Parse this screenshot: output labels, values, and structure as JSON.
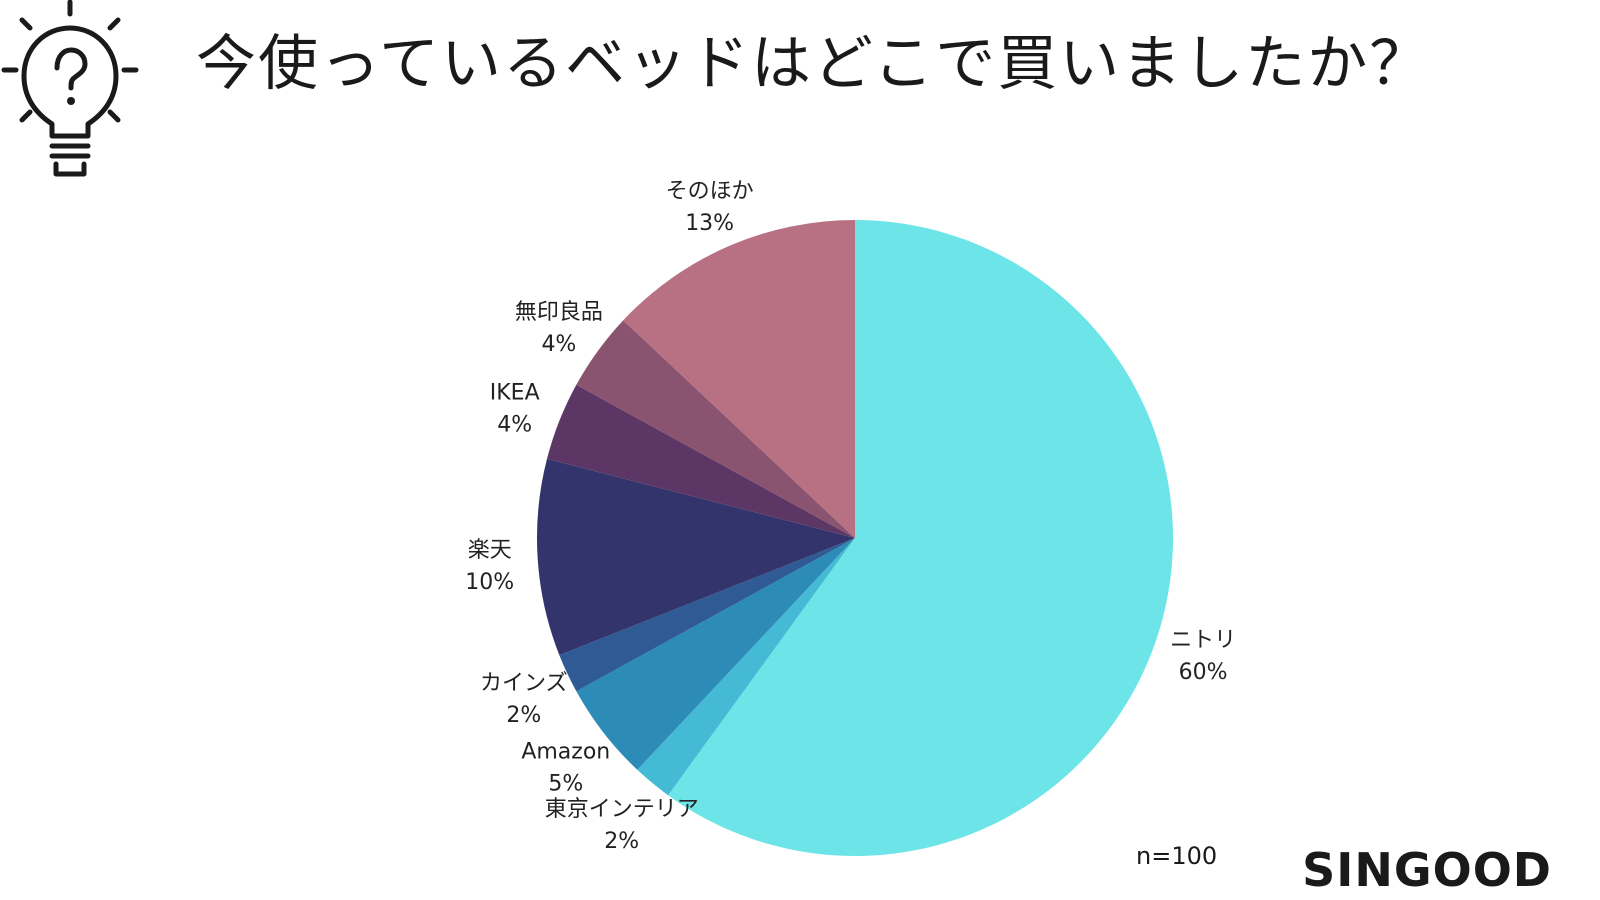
{
  "title": "今使っているベッドはどこで買いましたか？",
  "icon": "lightbulb-question-icon",
  "chart_data": {
    "type": "pie",
    "title": "今使っているベッドはどこで買いましたか？",
    "start": "12 o'clock, clockwise",
    "slices": [
      {
        "label": "ニトリ",
        "value": 60,
        "value_label": "60%",
        "color": "#6de5e8"
      },
      {
        "label": "東京インテリア",
        "value": 2,
        "value_label": "2%",
        "color": "#45bad5"
      },
      {
        "label": "Amazon",
        "value": 5,
        "value_label": "5%",
        "color": "#2d8bb8"
      },
      {
        "label": "カインズ",
        "value": 2,
        "value_label": "2%",
        "color": "#2f5a94"
      },
      {
        "label": "楽天",
        "value": 10,
        "value_label": "10%",
        "color": "#32346b"
      },
      {
        "label": "IKEA",
        "value": 4,
        "value_label": "4%",
        "color": "#5c3766"
      },
      {
        "label": "無印良品",
        "value": 4,
        "value_label": "4%",
        "color": "#8a5370"
      },
      {
        "label": "そのほか",
        "value": 13,
        "value_label": "13%",
        "color": "#b77182"
      }
    ]
  },
  "sample_size": "n=100",
  "brand": "SINGOOD"
}
